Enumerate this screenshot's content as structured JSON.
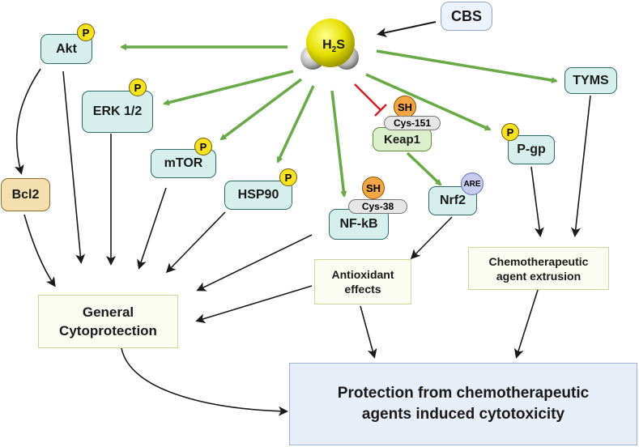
{
  "molecule": {
    "label": "H",
    "sub": "2",
    "label2": "S"
  },
  "nodes": {
    "cbs": "CBS",
    "akt": "Akt",
    "erk": "ERK 1/2",
    "mtor": "mTOR",
    "hsp90": "HSP90",
    "nfkb": "NF-kB",
    "keap1": "Keap1",
    "nrf2": "Nrf2",
    "pgp": "P-gp",
    "tyms": "TYMS",
    "bcl2": "Bcl2"
  },
  "badges": {
    "p": "P",
    "sh": "SH",
    "cys151": "Cys-151",
    "cys38": "Cys-38",
    "are": "ARE"
  },
  "outcomes": {
    "general_line1": "General",
    "general_line2": "Cytoprotection",
    "antioxidant_line1": "Antioxidant",
    "antioxidant_line2": "effects",
    "chemo_line1": "Chemotherapeutic",
    "chemo_line2": "agent extrusion",
    "protection_line1": "Protection from chemotherapeutic",
    "protection_line2": "agents induced cytotoxicity"
  },
  "colors": {
    "activation_arrow": "#6aaa46",
    "inhibition": "#d42020",
    "black_arrow": "#1a1a1a",
    "h2s_yellow": "#e5e000",
    "h2s_gray": "#9a9a9a"
  }
}
